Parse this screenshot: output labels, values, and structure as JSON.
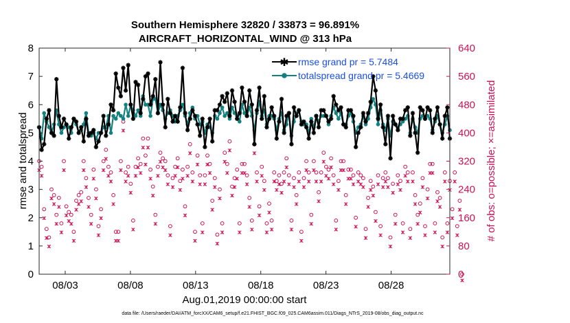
{
  "chart_data": {
    "type": "line",
    "title_line1": "Southern Hemisphere 32820 / 33873 = 96.891%",
    "title_line2": "AIRCRAFT_HORIZONTAL_WIND @ 313 hPa",
    "xlabel": "Aug.01,2019 00:00:00 start",
    "ylabel_left": "rmse and totalspread",
    "ylabel_right": "# of obs: o=possible; ×=assimilated",
    "footnote": "data file: /Users/raeder/DAI/ATM_forcXX/CAM6_setup/f.e21.FHIST_BGC.f09_025.CAM6assim.011/Diags_NTrS_2019-08/obs_diag_output.nc",
    "xlim": [
      1,
      32.5
    ],
    "ylim_left": [
      0,
      8
    ],
    "ylim_right": [
      0,
      640
    ],
    "x_ticks": [
      {
        "v": 3,
        "label": "08/03"
      },
      {
        "v": 8,
        "label": "08/08"
      },
      {
        "v": 13,
        "label": "08/13"
      },
      {
        "v": 18,
        "label": "08/18"
      },
      {
        "v": 23,
        "label": "08/23"
      },
      {
        "v": 28,
        "label": "08/28"
      }
    ],
    "y_ticks_left": [
      "0",
      "1",
      "2",
      "3",
      "4",
      "5",
      "6",
      "7",
      "8"
    ],
    "y_ticks_right": [
      "0",
      "80",
      "160",
      "240",
      "320",
      "400",
      "480",
      "560",
      "640"
    ],
    "colors": {
      "rmse": "#000000",
      "spread": "#148080",
      "obs": "#cc1155",
      "legend_text": "#1a4fe0",
      "right_axis": "#cc1155"
    },
    "series": [
      {
        "name": "rmse grand pr = 5.7484",
        "key": "rmse",
        "values": [
          5.2,
          4.4,
          4.6,
          5.5,
          5.8,
          5.0,
          4.9,
          6.9,
          5.6,
          5.2,
          5.5,
          5.3,
          4.8,
          5.2,
          5.5,
          5.4,
          5.0,
          5.2,
          4.7,
          5.5,
          4.9,
          5.0,
          5.1,
          4.5,
          4.7,
          5.0,
          5.6,
          4.9,
          5.3,
          6.0,
          5.8,
          7.1,
          6.6,
          6.3,
          7.3,
          6.5,
          7.4,
          6.0,
          5.5,
          6.8,
          6.7,
          5.7,
          6.2,
          7.0,
          7.1,
          6.0,
          6.3,
          6.9,
          5.7,
          7.5,
          6.0,
          5.2,
          6.2,
          5.7,
          5.4,
          5.6,
          5.4,
          5.9,
          7.3,
          5.7,
          5.1,
          5.5,
          5.8,
          5.6,
          5.3,
          4.9,
          5.5,
          4.5,
          5.2,
          5.5,
          4.7,
          5.8,
          5.8,
          6.0,
          6.3,
          6.1,
          6.4,
          5.6,
          6.5,
          6.1,
          5.5,
          5.7,
          6.6,
          6.1,
          5.6,
          6.5,
          6.0,
          4.6,
          5.8,
          6.6,
          5.5,
          6.3,
          5.2,
          5.5,
          5.9,
          5.6,
          4.8,
          5.4,
          6.2,
          5.0,
          5.6,
          5.7,
          4.6,
          5.9,
          5.6,
          5.8,
          5.3,
          5.4,
          5.2,
          4.8,
          5.4,
          5.0,
          5.6,
          5.2,
          5.8,
          5.8,
          5.6,
          5.4,
          5.5,
          6.3,
          6.0,
          5.8,
          5.9,
          5.3,
          5.2,
          5.8,
          5.8,
          5.6,
          4.5,
          5.0,
          5.2,
          5.7,
          5.4,
          5.7,
          6.1,
          7.0,
          6.5,
          5.5,
          6.0,
          5.2,
          4.6,
          5.6,
          4.1,
          5.6,
          5.3,
          5.1,
          5.5,
          5.5,
          5.8,
          5.9,
          4.9,
          5.7,
          5.0,
          4.3,
          5.9,
          5.8,
          5.5,
          5.9,
          5.8,
          5.0,
          5.5,
          5.9,
          5.3,
          4.8,
          5.6,
          5.9,
          4.8
        ]
      },
      {
        "name": "totalspread grand pr = 5.4669",
        "key": "spread",
        "values": [
          5.2,
          4.8,
          5.7,
          5.4,
          5.2,
          5.0,
          5.3,
          5.8,
          5.3,
          5.0,
          5.2,
          5.3,
          5.2,
          5.0,
          5.5,
          5.3,
          5.0,
          5.1,
          5.3,
          5.7,
          5.0,
          4.9,
          5.0,
          4.8,
          5.0,
          5.0,
          5.2,
          5.2,
          5.6,
          5.0,
          5.6,
          5.5,
          5.7,
          5.6,
          5.5,
          6.0,
          5.6,
          6.0,
          5.8,
          5.6,
          5.8,
          5.6,
          6.3,
          6.0,
          6.0,
          5.6,
          6.2,
          6.2,
          5.7,
          6.0,
          5.8,
          5.5,
          5.7,
          5.8,
          5.6,
          5.4,
          5.6,
          5.8,
          6.0,
          5.6,
          5.3,
          5.7,
          5.9,
          5.5,
          5.6,
          5.3,
          5.4,
          5.0,
          5.3,
          5.2,
          5.0,
          5.6,
          5.5,
          5.7,
          5.9,
          5.6,
          5.7,
          5.5,
          5.9,
          5.7,
          5.6,
          5.4,
          6.0,
          5.7,
          5.6,
          5.9,
          5.6,
          5.1,
          5.7,
          6.1,
          5.6,
          5.8,
          5.3,
          5.6,
          5.6,
          5.5,
          5.1,
          5.5,
          5.7,
          5.1,
          5.3,
          5.7,
          4.9,
          5.4,
          5.7,
          5.8,
          5.4,
          5.3,
          5.3,
          5.0,
          5.5,
          5.2,
          5.6,
          5.4,
          5.6,
          5.6,
          5.6,
          5.3,
          5.6,
          5.9,
          5.7,
          5.5,
          5.7,
          5.3,
          5.3,
          5.6,
          5.7,
          5.4,
          5.0,
          5.2,
          5.3,
          5.6,
          5.3,
          5.5,
          5.9,
          6.2,
          6.0,
          5.3,
          5.8,
          5.3,
          5.1,
          5.5,
          4.9,
          5.4,
          5.3,
          5.2,
          5.3,
          5.4,
          5.5,
          5.6,
          5.0,
          5.5,
          5.2,
          5.0,
          5.5,
          5.6,
          5.5,
          5.6,
          5.5,
          5.1,
          5.4,
          5.6,
          5.3,
          5.0,
          5.3,
          5.6,
          5.1
        ]
      }
    ],
    "obs_possible": [
      4.0,
      3.8,
      2.3,
      1.6,
      1.3,
      3.0,
      2.8,
      2.1,
      2.7,
      1.8,
      4.0,
      2.4,
      2.2,
      2.1,
      1.5,
      2.6,
      2.8,
      2.9,
      4.0,
      3.4,
      2.7,
      2.1,
      3.7,
      3.0,
      1.7,
      2.3,
      4.0,
      4.4,
      3.8,
      3.6,
      2.8,
      1.5,
      1.5,
      4.0,
      5.4,
      3.6,
      3.8,
      3.2,
      1.9,
      3.8,
      4.1,
      3.9,
      4.8,
      4.2,
      4.8,
      3.7,
      3.1,
      2.1,
      3.8,
      4.3,
      4.1,
      4.0,
      3.5,
      1.7,
      3.4,
      3.8,
      4.1,
      3.3,
      3.7,
      2.4,
      3.8,
      4.6,
      3.6,
      1.5,
      4.2,
      3.5,
      1.8,
      3.5,
      4.2,
      3.9,
      2.6,
      3.4,
      1.4,
      3.0,
      1.8,
      4.3,
      3.9,
      4.7,
      3.1,
      3.4,
      3.7,
      1.8,
      3.9,
      3.9,
      3.5,
      2.7,
      1.9,
      4.6,
      3.6,
      2.4,
      3.8,
      3.3,
      1.8,
      2.5,
      1.9,
      3.6,
      3.3,
      3.5,
      3.2,
      3.6,
      4.1,
      3.5,
      1.9,
      3.4,
      2.8,
      3.6,
      1.5,
      3.4,
      4.0,
      3.6,
      2.1,
      4.0,
      3.6,
      2.9,
      3.6,
      4.3,
      3.8,
      3.7,
      4.1,
      3.5,
      1.9,
      3.3,
      4.0,
      4.0,
      2.8,
      3.7,
      3.7,
      3.5,
      2.0,
      3.6,
      3.5,
      3.4,
      1.6,
      2.7,
      3.3,
      3.1,
      2.2,
      3.5,
      1.7,
      3.4,
      3.6,
      3.4,
      1.3,
      3.2,
      2.1,
      3.5,
      3.3,
      1.8,
      3.8,
      3.6,
      1.6,
      3.6,
      2.8,
      2.1,
      2.5,
      3.4,
      1.7,
      3.0,
      3.9,
      3.9,
      1.8,
      2.9,
      2.7,
      1.3,
      3.6,
      1.8,
      3.3,
      2.3,
      3.6,
      1.7,
      2.6,
      0.0
    ],
    "obs_assimilated": [
      3.9,
      3.7,
      2.2,
      1.5,
      1.2,
      2.9,
      2.7,
      2.0,
      2.6,
      1.7,
      3.9,
      2.3,
      2.1,
      2.0,
      1.4,
      2.5,
      2.7,
      2.8,
      3.9,
      3.3,
      2.6,
      2.0,
      3.6,
      2.9,
      1.6,
      2.2,
      3.9,
      4.3,
      3.7,
      3.5,
      2.7,
      1.4,
      1.4,
      3.9,
      5.3,
      3.5,
      3.7,
      3.1,
      1.8,
      3.7,
      4.0,
      3.8,
      4.7,
      4.1,
      4.7,
      3.6,
      3.0,
      2.0,
      3.7,
      4.2,
      4.0,
      3.9,
      3.4,
      1.6,
      3.3,
      3.7,
      4.0,
      3.2,
      3.6,
      2.3,
      3.7,
      4.5,
      3.5,
      1.4,
      4.1,
      3.4,
      1.7,
      3.4,
      4.1,
      3.8,
      2.5,
      3.3,
      1.3,
      2.9,
      1.7,
      4.2,
      3.8,
      4.6,
      3.0,
      3.3,
      3.6,
      1.7,
      3.8,
      3.8,
      3.4,
      2.6,
      1.8,
      4.5,
      3.5,
      2.3,
      3.7,
      3.2,
      1.7,
      2.4,
      1.8,
      3.5,
      3.2,
      3.4,
      3.1,
      3.5,
      4.0,
      3.4,
      1.8,
      3.3,
      2.7,
      3.5,
      1.4,
      3.3,
      3.9,
      3.5,
      2.0,
      3.9,
      3.5,
      2.8,
      3.5,
      4.2,
      3.7,
      3.6,
      4.0,
      3.4,
      1.8,
      3.2,
      3.9,
      3.9,
      2.7,
      3.6,
      3.6,
      3.4,
      1.9,
      3.5,
      3.4,
      3.3,
      1.5,
      2.6,
      3.2,
      3.0,
      2.1,
      3.4,
      1.6,
      3.3,
      3.5,
      3.3,
      1.2,
      3.1,
      2.0,
      3.4,
      3.2,
      1.7,
      3.7,
      3.5,
      1.5,
      3.5,
      2.7,
      2.0,
      2.4,
      3.3,
      1.6,
      2.9,
      3.8,
      3.8,
      1.7,
      2.8,
      2.6,
      1.2,
      3.5,
      1.7,
      3.2,
      2.2,
      3.5,
      1.6,
      2.5,
      0.0
    ]
  }
}
